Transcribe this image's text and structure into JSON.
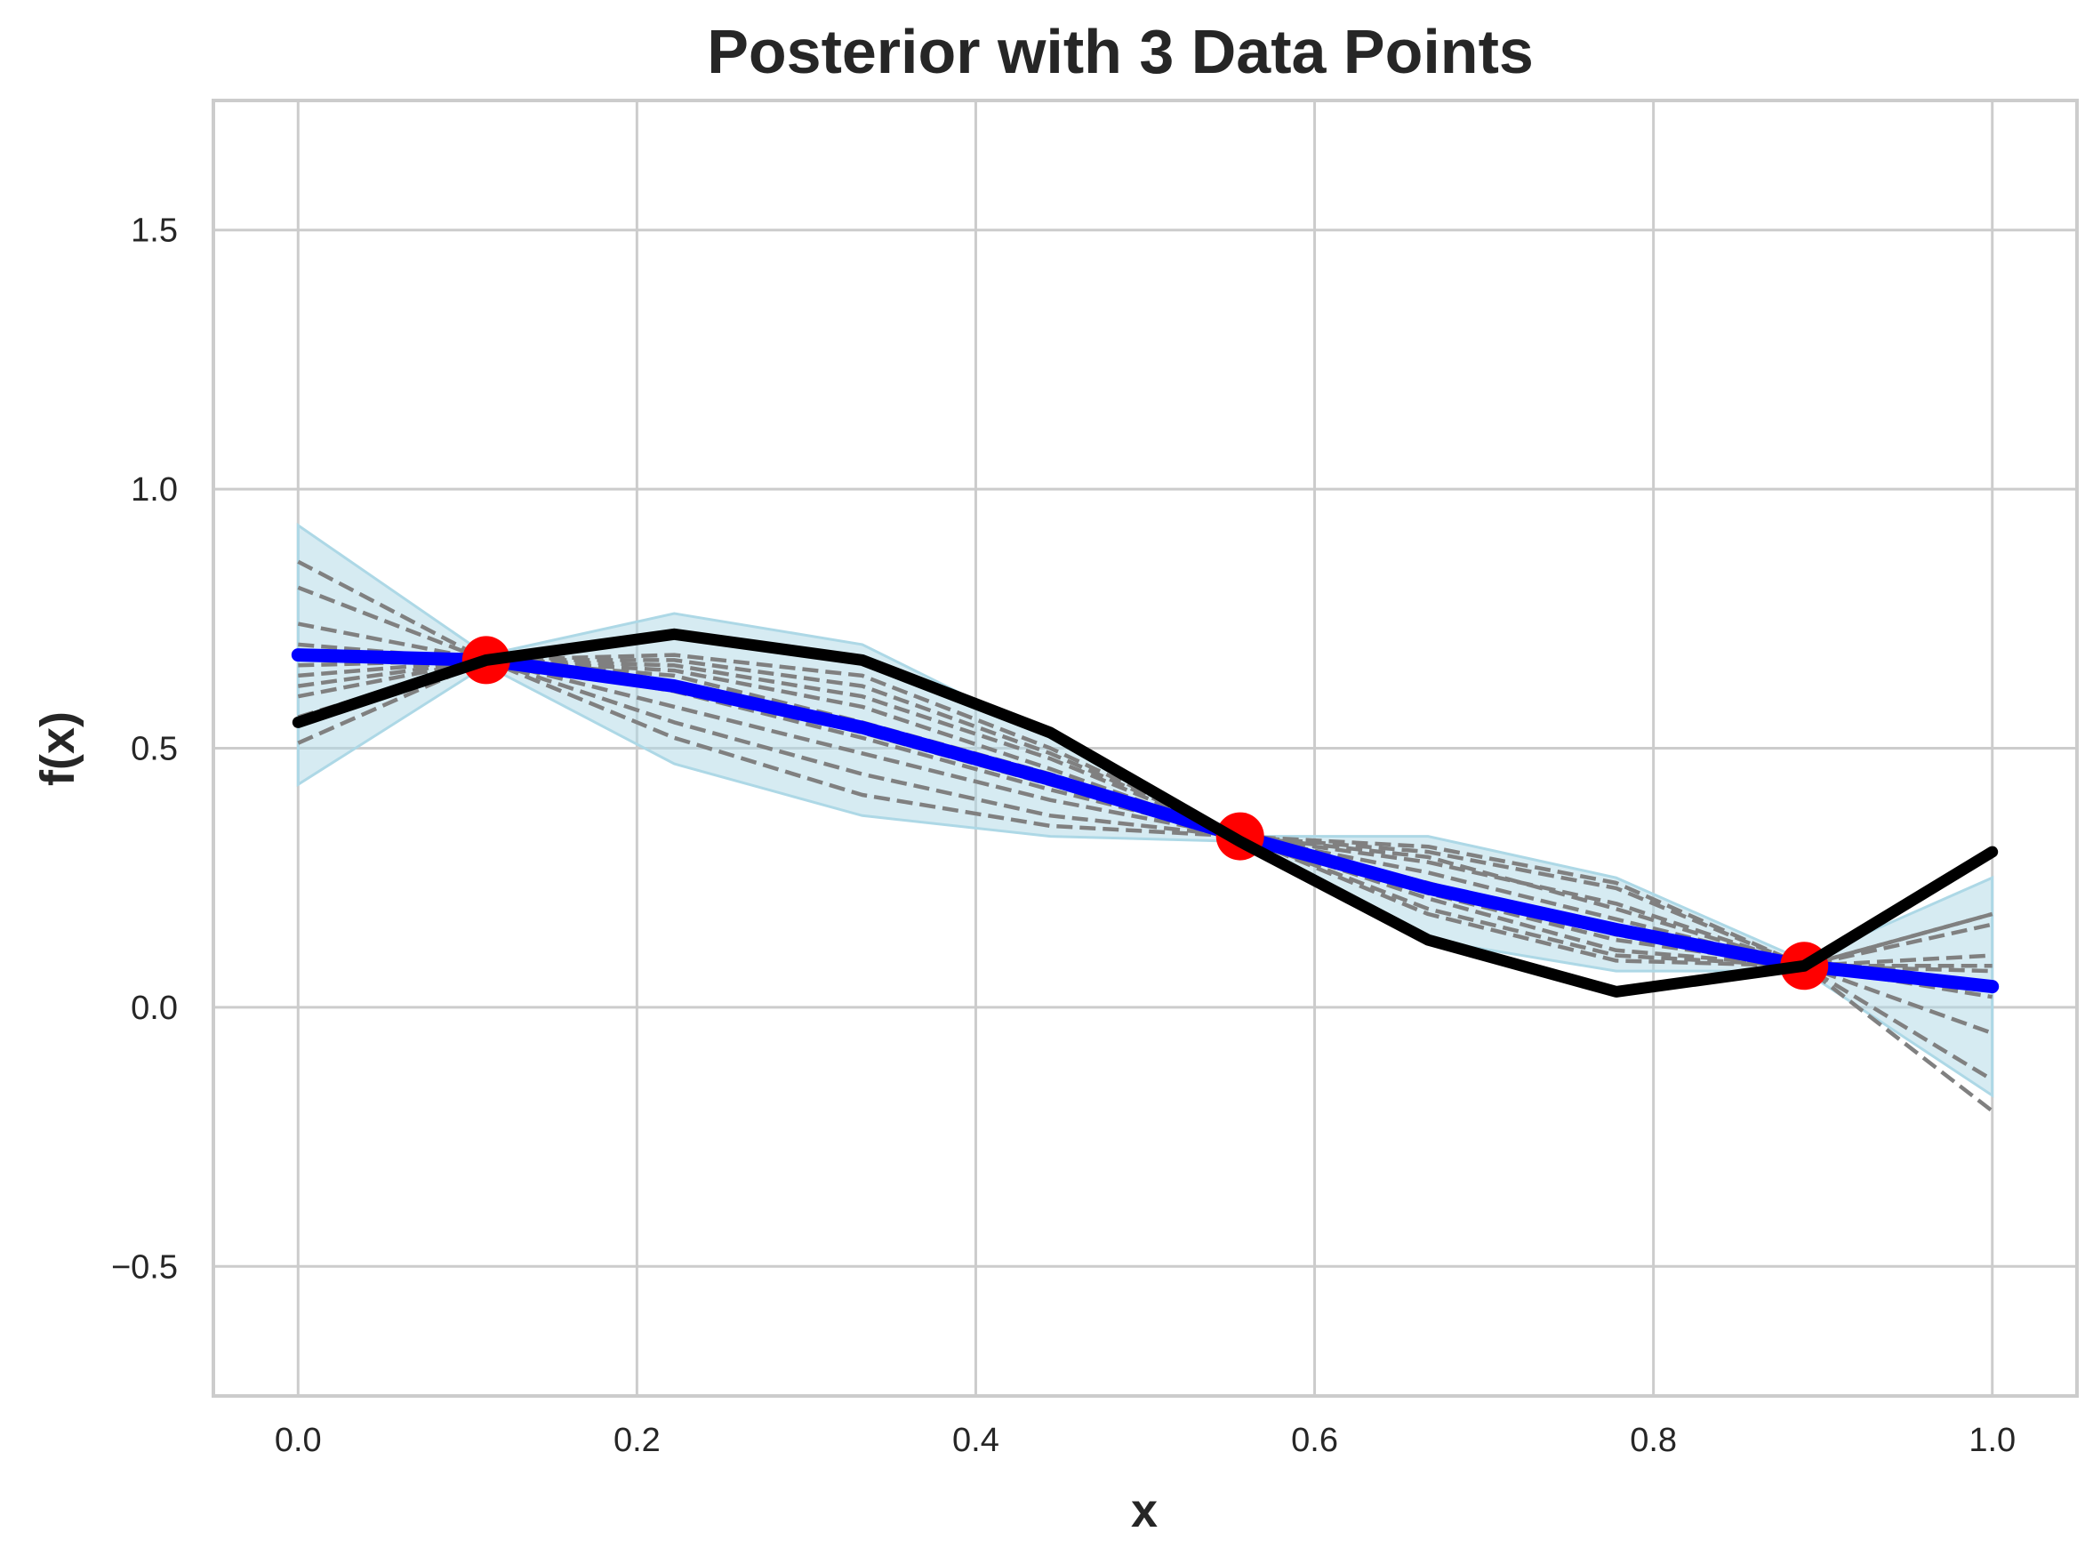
{
  "chart_data": {
    "type": "line",
    "title": "Posterior with 3 Data Points",
    "xlabel": "x",
    "ylabel": "f(x)",
    "xlim": [
      -0.05,
      1.05
    ],
    "ylim": [
      -0.75,
      1.75
    ],
    "xticks": [
      0.0,
      0.2,
      0.4,
      0.6,
      0.8,
      1.0
    ],
    "xtick_labels": [
      "0.0",
      "0.2",
      "0.4",
      "0.6",
      "0.8",
      "1.0"
    ],
    "yticks": [
      -0.5,
      0.0,
      0.5,
      1.0,
      1.5
    ],
    "ytick_labels": [
      "−0.5",
      "0.0",
      "0.5",
      "1.0",
      "1.5"
    ],
    "grid": true,
    "x": [
      0.0,
      0.111,
      0.222,
      0.333,
      0.444,
      0.556,
      0.667,
      0.778,
      0.889,
      1.0
    ],
    "confidence_band": {
      "upper": [
        0.93,
        0.68,
        0.76,
        0.7,
        0.52,
        0.33,
        0.33,
        0.25,
        0.09,
        0.25
      ],
      "lower": [
        0.43,
        0.66,
        0.47,
        0.37,
        0.33,
        0.32,
        0.13,
        0.07,
        0.07,
        -0.17
      ],
      "color": "#add8e6"
    },
    "samples": [
      [
        0.86,
        0.67,
        0.52,
        0.41,
        0.35,
        0.33,
        0.19,
        0.1,
        0.08,
        0.18
      ],
      [
        0.81,
        0.67,
        0.55,
        0.45,
        0.37,
        0.33,
        0.21,
        0.11,
        0.08,
        0.16
      ],
      [
        0.74,
        0.67,
        0.58,
        0.49,
        0.4,
        0.33,
        0.24,
        0.14,
        0.08,
        0.1
      ],
      [
        0.7,
        0.67,
        0.62,
        0.53,
        0.43,
        0.33,
        0.26,
        0.17,
        0.08,
        0.07
      ],
      [
        0.66,
        0.67,
        0.65,
        0.58,
        0.46,
        0.33,
        0.28,
        0.2,
        0.08,
        0.02
      ],
      [
        0.64,
        0.67,
        0.66,
        0.6,
        0.48,
        0.33,
        0.3,
        0.23,
        0.08,
        -0.05
      ],
      [
        0.62,
        0.67,
        0.67,
        0.62,
        0.49,
        0.33,
        0.31,
        0.24,
        0.08,
        -0.14
      ],
      [
        0.6,
        0.67,
        0.68,
        0.64,
        0.5,
        0.33,
        0.29,
        0.19,
        0.08,
        -0.2
      ],
      [
        0.56,
        0.67,
        0.64,
        0.55,
        0.45,
        0.33,
        0.22,
        0.13,
        0.08,
        0.08
      ],
      [
        0.51,
        0.67,
        0.61,
        0.52,
        0.42,
        0.33,
        0.18,
        0.09,
        0.08,
        0.18
      ]
    ],
    "sample_color": "#808080",
    "mean": [
      0.68,
      0.67,
      0.62,
      0.54,
      0.44,
      0.33,
      0.23,
      0.15,
      0.08,
      0.04
    ],
    "mean_color": "#0000ff",
    "true_function": [
      0.55,
      0.67,
      0.72,
      0.67,
      0.53,
      0.32,
      0.13,
      0.03,
      0.08,
      0.3
    ],
    "true_color": "#000000",
    "observations": {
      "x": [
        0.111,
        0.556,
        0.889
      ],
      "y": [
        0.67,
        0.33,
        0.08
      ],
      "color": "#ff0000"
    }
  }
}
